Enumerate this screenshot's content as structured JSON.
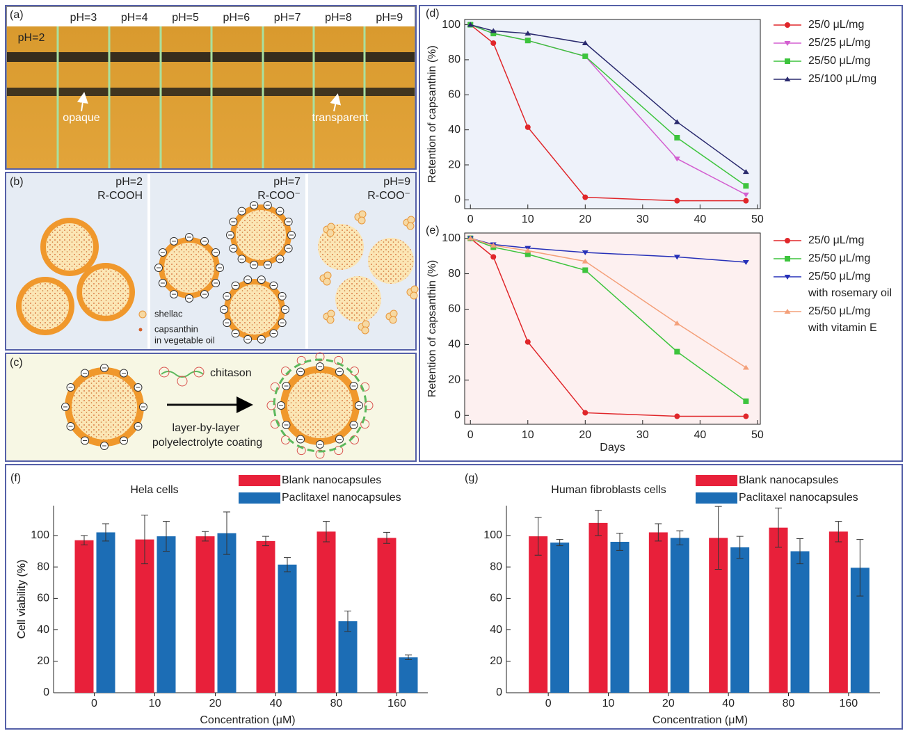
{
  "panel_a": {
    "label": "(a)",
    "ph_labels": [
      "pH=2",
      "pH=3",
      "pH=4",
      "pH=5",
      "pH=6",
      "pH=7",
      "pH=8",
      "pH=9"
    ],
    "opaque": "opaque",
    "transparent": "transparent"
  },
  "panel_b": {
    "label": "(b)",
    "states": [
      {
        "ph": "pH=2",
        "group": "R-COOH"
      },
      {
        "ph": "pH=7",
        "group": "R-COO⁻"
      },
      {
        "ph": "pH=9",
        "group": "R-COO⁻"
      }
    ],
    "shellac": "shellac",
    "capsanthin": [
      "capsanthin",
      "in vegetable oil"
    ]
  },
  "panel_c": {
    "label": "(c)",
    "chitason": "chitason",
    "process": [
      "layer-by-layer",
      "polyelectrolyte coating"
    ]
  },
  "chart_data": [
    {
      "type": "line",
      "label": "(d)",
      "y_label": "Retention of capsanthin (%)",
      "xlim": [
        -1,
        50.5
      ],
      "ylim": [
        -5,
        103
      ],
      "xticks": [
        0,
        10,
        20,
        30,
        40,
        50
      ],
      "yticks": [
        0,
        20,
        40,
        60,
        80,
        100
      ],
      "plot_background": "#eef2fa",
      "x": [
        0,
        4,
        10,
        20,
        36,
        48
      ],
      "series": [
        {
          "name": "25/0 μL/mg",
          "color": "#e0262a",
          "marker": "circle",
          "values": [
            100,
            89.5,
            41.5,
            1.5,
            -0.5,
            -0.5
          ]
        },
        {
          "name": "25/25 μL/mg",
          "color": "#d35fd0",
          "marker": "triangle-down",
          "values": [
            100,
            95,
            91,
            82,
            23.5,
            3
          ]
        },
        {
          "name": "25/50 μL/mg",
          "color": "#3dc43d",
          "marker": "square",
          "values": [
            100,
            95,
            91,
            82,
            35.5,
            8
          ]
        },
        {
          "name": "25/100 μL/mg",
          "color": "#2a2a6e",
          "marker": "triangle-up",
          "values": [
            100,
            96.5,
            95,
            89.5,
            44.5,
            16
          ]
        }
      ]
    },
    {
      "type": "line",
      "label": "(e)",
      "y_label": "Retention of capsanthin (%)",
      "x_label": "Days",
      "xlim": [
        -1,
        50.5
      ],
      "ylim": [
        -5,
        103
      ],
      "xticks": [
        0,
        10,
        20,
        30,
        40,
        50
      ],
      "yticks": [
        0,
        20,
        40,
        60,
        80,
        100
      ],
      "plot_background": "#fdf0f0",
      "x": [
        0,
        4,
        10,
        20,
        36,
        48
      ],
      "series": [
        {
          "name": "25/0 μL/mg",
          "color": "#e0262a",
          "marker": "circle",
          "values": [
            100,
            89.5,
            41.5,
            1.5,
            -0.5,
            -0.5
          ]
        },
        {
          "name": "25/50 μL/mg",
          "color": "#3dc43d",
          "marker": "square",
          "values": [
            100,
            95,
            91,
            82,
            36,
            8
          ]
        },
        {
          "name": "25/50 μL/mg\nwith rosemary oil",
          "color": "#2630b8",
          "marker": "triangle-down",
          "values": [
            100,
            96.5,
            94.5,
            92,
            89.5,
            86.5
          ]
        },
        {
          "name": "25/50 μL/mg\nwith vitamin E",
          "color": "#f4a07a",
          "marker": "triangle-up",
          "values": [
            100,
            96,
            93,
            87,
            52,
            27
          ]
        }
      ]
    },
    {
      "type": "bar",
      "label": "(f)",
      "title": "Hela cells",
      "y_label": "Cell viability (%)",
      "x_label": "Concentration (μM)",
      "categories": [
        "0",
        "10",
        "20",
        "40",
        "80",
        "160"
      ],
      "ylim": [
        0,
        119
      ],
      "yticks": [
        0,
        20,
        40,
        60,
        80,
        100
      ],
      "series": [
        {
          "name": "Blank nanocapsules",
          "color": "#e8203a",
          "values": [
            97,
            97.5,
            99.5,
            96.5,
            102.5,
            98.5
          ],
          "errors": [
            3,
            15.5,
            3,
            3,
            6.5,
            3.5
          ]
        },
        {
          "name": "Paclitaxel nanocapsules",
          "color": "#1c6db5",
          "values": [
            102,
            99.5,
            101.5,
            81.5,
            45.5,
            22.5
          ],
          "errors": [
            5.5,
            9.5,
            13.5,
            4.5,
            6.5,
            1.5
          ]
        }
      ]
    },
    {
      "type": "bar",
      "label": "(g)",
      "title": "Human fibroblasts cells",
      "y_label": "Cell viability (%)",
      "x_label": "Concentration (μM)",
      "categories": [
        "0",
        "10",
        "20",
        "40",
        "80",
        "160"
      ],
      "ylim": [
        0,
        119
      ],
      "yticks": [
        0,
        20,
        40,
        60,
        80,
        100
      ],
      "series": [
        {
          "name": "Blank nanocapsules",
          "color": "#e8203a",
          "values": [
            99.5,
            108,
            102,
            98.5,
            105,
            102.5
          ],
          "errors": [
            12,
            8,
            5.5,
            20,
            12.5,
            6.5
          ]
        },
        {
          "name": "Paclitaxel nanocapsules",
          "color": "#1c6db5",
          "values": [
            95.5,
            96,
            98.5,
            92.5,
            90,
            79.5
          ],
          "errors": [
            2,
            5.5,
            4.5,
            7,
            8,
            18
          ]
        }
      ]
    }
  ]
}
